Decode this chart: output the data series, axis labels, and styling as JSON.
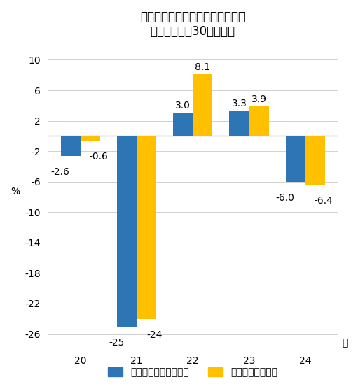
{
  "title_line1": "年末賞与の前年比の推移・三重県",
  "title_line2": "（事業所規模30人以上）",
  "ylabel": "%",
  "xlabel_suffix": "年",
  "categories": [
    "20",
    "21",
    "22",
    "23",
    "24"
  ],
  "series1_label": "調査産業計（前年比）",
  "series1_values": [
    -2.6,
    -25.0,
    3.0,
    3.3,
    -6.0
  ],
  "series1_color": "#2E75B6",
  "series2_label": "製造業（前年比）",
  "series2_values": [
    -0.6,
    -24.0,
    8.1,
    3.9,
    -6.4
  ],
  "series2_color": "#FFC000",
  "yticks": [
    10,
    6,
    2,
    -2,
    -6,
    -10,
    -14,
    -18,
    -22,
    -26
  ],
  "ylim": [
    -28,
    12
  ],
  "bar_width": 0.35,
  "background_color": "#ffffff",
  "border_color": "#000000",
  "label_fontsize": 10,
  "title_fontsize": 12,
  "tick_fontsize": 10,
  "legend_fontsize": 10
}
